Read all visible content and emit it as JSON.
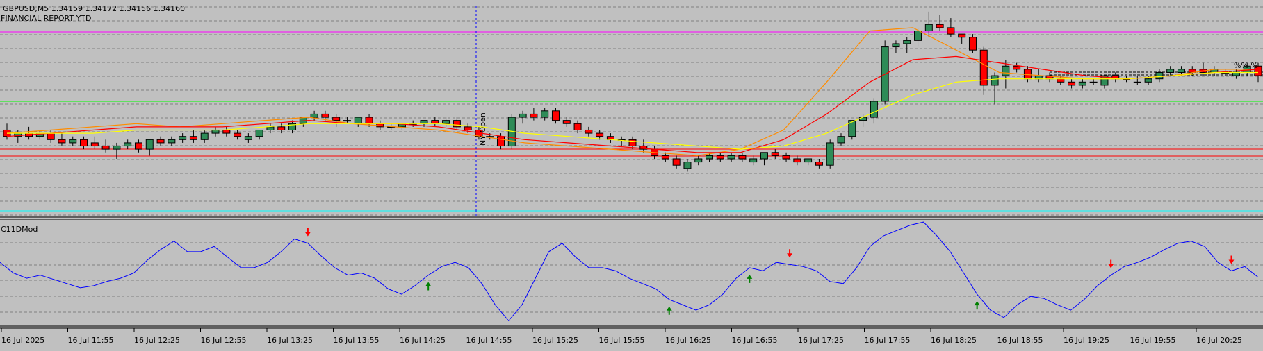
{
  "header": {
    "symbol_line": "GBPUSD,M5  1.34159 1.34172 1.34156 1.34160",
    "report_label": "FINANCIAL REPORT YTD",
    "session_label": "NY Open",
    "indicator_name": "C11DMod",
    "percent_marker": "%% %"
  },
  "colors": {
    "background": "#c0c0c0",
    "bull_candle": "#2e8b57",
    "bear_candle": "#ff0000",
    "ma_fast": "#ff8c00",
    "ma_mid": "#ff0000",
    "ma_slow": "#ffff00",
    "ma_blue": "#4169e1",
    "oscillator": "#0000ff",
    "magenta_line": "#ff00ff",
    "green_line": "#00ff00",
    "red_line": "#ff0000",
    "cyan_line": "#00ffff",
    "session_line": "#0000ff"
  },
  "chart_data": [
    {
      "type": "candlestick",
      "symbol": "GBPUSD",
      "timeframe": "M5",
      "last_bar": {
        "open": 1.34159,
        "high": 1.34172,
        "low": 1.34156,
        "close": 1.3416
      },
      "x_tick_labels": [
        "16 Jul 2025",
        "16 Jul 11:55",
        "16 Jul 12:25",
        "16 Jul 12:55",
        "16 Jul 13:25",
        "16 Jul 13:55",
        "16 Jul 14:25",
        "16 Jul 14:55",
        "16 Jul 15:25",
        "16 Jul 15:55",
        "16 Jul 16:25",
        "16 Jul 16:55",
        "16 Jul 17:25",
        "16 Jul 17:55",
        "16 Jul 18:25",
        "16 Jul 18:55",
        "16 Jul 19:25",
        "16 Jul 19:55",
        "16 Jul 20:25"
      ],
      "ylim": [
        1.3378,
        1.3445
      ],
      "candles": [
        [
          1.3405,
          1.3407,
          1.3402,
          1.3403
        ],
        [
          1.3403,
          1.3405,
          1.3401,
          1.3404
        ],
        [
          1.3404,
          1.3406,
          1.3402,
          1.3403
        ],
        [
          1.3403,
          1.3405,
          1.3402,
          1.3404
        ],
        [
          1.3404,
          1.3405,
          1.3401,
          1.3402
        ],
        [
          1.3402,
          1.3404,
          1.34,
          1.3401
        ],
        [
          1.3401,
          1.3403,
          1.34,
          1.3402
        ],
        [
          1.3402,
          1.3403,
          1.3399,
          1.34
        ],
        [
          1.3401,
          1.3403,
          1.3399,
          1.34
        ],
        [
          1.34,
          1.3402,
          1.3398,
          1.3399
        ],
        [
          1.3399,
          1.3401,
          1.3396,
          1.34
        ],
        [
          1.34,
          1.3402,
          1.3399,
          1.3401
        ],
        [
          1.3401,
          1.3402,
          1.3398,
          1.3399
        ],
        [
          1.3399,
          1.3402,
          1.3397,
          1.3402
        ],
        [
          1.3402,
          1.3403,
          1.34,
          1.3401
        ],
        [
          1.3401,
          1.3403,
          1.34,
          1.3402
        ],
        [
          1.3402,
          1.3404,
          1.3401,
          1.3403
        ],
        [
          1.3403,
          1.3405,
          1.3401,
          1.3402
        ],
        [
          1.3402,
          1.3405,
          1.3401,
          1.3404
        ],
        [
          1.3404,
          1.3406,
          1.3403,
          1.3405
        ],
        [
          1.3405,
          1.3406,
          1.3403,
          1.3404
        ],
        [
          1.3404,
          1.3405,
          1.3402,
          1.3403
        ],
        [
          1.3402,
          1.3404,
          1.3401,
          1.3403
        ],
        [
          1.3403,
          1.3405,
          1.3402,
          1.3405
        ],
        [
          1.3405,
          1.3407,
          1.3404,
          1.3406
        ],
        [
          1.3406,
          1.3407,
          1.3404,
          1.3405
        ],
        [
          1.3405,
          1.3408,
          1.3404,
          1.3407
        ],
        [
          1.3407,
          1.3409,
          1.3406,
          1.3409
        ],
        [
          1.3409,
          1.3411,
          1.3408,
          1.341
        ],
        [
          1.341,
          1.3411,
          1.3408,
          1.3409
        ],
        [
          1.3409,
          1.341,
          1.3406,
          1.3408
        ],
        [
          1.3408,
          1.3409,
          1.3407,
          1.3408
        ],
        [
          1.3407,
          1.3409,
          1.3406,
          1.3409
        ],
        [
          1.3409,
          1.341,
          1.3406,
          1.3407
        ],
        [
          1.3407,
          1.3408,
          1.3405,
          1.3406
        ],
        [
          1.3406,
          1.3407,
          1.3405,
          1.3406
        ],
        [
          1.3406,
          1.3407,
          1.3405,
          1.3407
        ],
        [
          1.3407,
          1.3408,
          1.3406,
          1.3407
        ],
        [
          1.3407,
          1.3408,
          1.3406,
          1.3408
        ],
        [
          1.3408,
          1.3409,
          1.3406,
          1.3407
        ],
        [
          1.3407,
          1.3409,
          1.3406,
          1.3408
        ],
        [
          1.3408,
          1.3409,
          1.3405,
          1.3406
        ],
        [
          1.3406,
          1.3407,
          1.3404,
          1.3405
        ],
        [
          1.3405,
          1.3406,
          1.3402,
          1.3403
        ],
        [
          1.3403,
          1.3404,
          1.3402,
          1.3403
        ],
        [
          1.3403,
          1.3404,
          1.3399,
          1.34
        ],
        [
          1.34,
          1.341,
          1.3399,
          1.3409
        ],
        [
          1.3409,
          1.3411,
          1.3407,
          1.341
        ],
        [
          1.341,
          1.3412,
          1.3408,
          1.3409
        ],
        [
          1.3409,
          1.3412,
          1.3408,
          1.3411
        ],
        [
          1.3411,
          1.3412,
          1.3407,
          1.3408
        ],
        [
          1.3408,
          1.3409,
          1.3406,
          1.3407
        ],
        [
          1.3407,
          1.3408,
          1.3404,
          1.3405
        ],
        [
          1.3405,
          1.3406,
          1.3403,
          1.3404
        ],
        [
          1.3404,
          1.3405,
          1.3402,
          1.3403
        ],
        [
          1.3403,
          1.3404,
          1.3401,
          1.3402
        ],
        [
          1.3402,
          1.3403,
          1.34,
          1.3402
        ],
        [
          1.3402,
          1.3403,
          1.3399,
          1.34
        ],
        [
          1.34,
          1.3402,
          1.3398,
          1.3399
        ],
        [
          1.3399,
          1.34,
          1.3396,
          1.3397
        ],
        [
          1.3397,
          1.3398,
          1.3395,
          1.3396
        ],
        [
          1.3396,
          1.3397,
          1.3393,
          1.3394
        ],
        [
          1.3393,
          1.3396,
          1.3392,
          1.3395
        ],
        [
          1.3395,
          1.3397,
          1.3394,
          1.3396
        ],
        [
          1.3396,
          1.3398,
          1.3395,
          1.3397
        ],
        [
          1.3397,
          1.3398,
          1.3395,
          1.3396
        ],
        [
          1.3396,
          1.3398,
          1.3395,
          1.3397
        ],
        [
          1.3397,
          1.3398,
          1.3395,
          1.3396
        ],
        [
          1.3395,
          1.3397,
          1.3394,
          1.3396
        ],
        [
          1.3396,
          1.3398,
          1.3394,
          1.3398
        ],
        [
          1.3398,
          1.3399,
          1.3396,
          1.3397
        ],
        [
          1.3397,
          1.3398,
          1.3395,
          1.3396
        ],
        [
          1.3396,
          1.3397,
          1.3394,
          1.3395
        ],
        [
          1.3395,
          1.3396,
          1.3394,
          1.3396
        ],
        [
          1.3395,
          1.3396,
          1.3393,
          1.3394
        ],
        [
          1.3394,
          1.3402,
          1.3393,
          1.3401
        ],
        [
          1.3401,
          1.3404,
          1.34,
          1.3403
        ],
        [
          1.3403,
          1.3408,
          1.3402,
          1.3408
        ],
        [
          1.3408,
          1.341,
          1.3406,
          1.3409
        ],
        [
          1.3409,
          1.3415,
          1.3407,
          1.3414
        ],
        [
          1.3414,
          1.3433,
          1.3413,
          1.3431
        ],
        [
          1.3431,
          1.3433,
          1.3429,
          1.3432
        ],
        [
          1.3432,
          1.3434,
          1.3429,
          1.3433
        ],
        [
          1.3433,
          1.3437,
          1.3431,
          1.3436
        ],
        [
          1.3436,
          1.3442,
          1.3434,
          1.3438
        ],
        [
          1.3438,
          1.3441,
          1.3436,
          1.3437
        ],
        [
          1.3437,
          1.344,
          1.3434,
          1.3435
        ],
        [
          1.3435,
          1.3435,
          1.3432,
          1.3434
        ],
        [
          1.3434,
          1.3435,
          1.3429,
          1.343
        ],
        [
          1.343,
          1.3431,
          1.3416,
          1.3419
        ],
        [
          1.3419,
          1.3423,
          1.3413,
          1.3422
        ],
        [
          1.3422,
          1.3427,
          1.3418,
          1.3425
        ],
        [
          1.3425,
          1.3426,
          1.3423,
          1.3424
        ],
        [
          1.3424,
          1.3425,
          1.342,
          1.3421
        ],
        [
          1.3421,
          1.3424,
          1.342,
          1.3422
        ],
        [
          1.3422,
          1.3423,
          1.342,
          1.3421
        ],
        [
          1.3421,
          1.3422,
          1.3419,
          1.342
        ],
        [
          1.342,
          1.3421,
          1.3418,
          1.3419
        ],
        [
          1.3419,
          1.3421,
          1.3418,
          1.342
        ],
        [
          1.342,
          1.3421,
          1.3419,
          1.342
        ],
        [
          1.3419,
          1.3422,
          1.3418,
          1.3422
        ],
        [
          1.3422,
          1.3423,
          1.342,
          1.3421
        ],
        [
          1.3421,
          1.3422,
          1.342,
          1.3421
        ],
        [
          1.342,
          1.3422,
          1.3419,
          1.342
        ],
        [
          1.342,
          1.3422,
          1.3419,
          1.3421
        ],
        [
          1.3421,
          1.3424,
          1.342,
          1.3423
        ],
        [
          1.3423,
          1.3425,
          1.3422,
          1.3424
        ],
        [
          1.3423,
          1.3425,
          1.3422,
          1.3424
        ],
        [
          1.3424,
          1.3425,
          1.3422,
          1.3423
        ],
        [
          1.3424,
          1.3426,
          1.3422,
          1.3423
        ],
        [
          1.3423,
          1.3425,
          1.3422,
          1.3424
        ],
        [
          1.3423,
          1.3424,
          1.3422,
          1.3423
        ],
        [
          1.3422,
          1.3424,
          1.3421,
          1.3423
        ],
        [
          1.3423,
          1.3426,
          1.3422,
          1.3425
        ],
        [
          1.3425,
          1.3426,
          1.342,
          1.3422
        ]
      ],
      "moving_averages": [
        {
          "name": "fast",
          "color": "#ff8c00",
          "values": [
            1.3404,
            1.3405,
            1.3406,
            1.3407,
            1.3406,
            1.3407,
            1.3408,
            1.3409,
            1.3407,
            1.3406,
            1.3405,
            1.3403,
            1.3401,
            1.34,
            1.3399,
            1.3398,
            1.3397,
            1.3399,
            1.3405,
            1.342,
            1.3436,
            1.3437,
            1.343,
            1.3423,
            1.3422,
            1.3421,
            1.3421,
            1.3422,
            1.3424,
            1.3424
          ]
        },
        {
          "name": "mid",
          "color": "#ff0000",
          "values": [
            1.3403,
            1.3404,
            1.3405,
            1.3406,
            1.3406,
            1.3406,
            1.3407,
            1.3408,
            1.3407,
            1.3407,
            1.3406,
            1.3404,
            1.3402,
            1.3401,
            1.34,
            1.3399,
            1.3398,
            1.3398,
            1.3402,
            1.341,
            1.342,
            1.3427,
            1.3428,
            1.3426,
            1.3424,
            1.3422,
            1.3421,
            1.3422,
            1.3423,
            1.3424
          ]
        },
        {
          "name": "slow",
          "color": "#ffff00",
          "values": [
            1.3404,
            1.3404,
            1.3404,
            1.3405,
            1.3405,
            1.3405,
            1.3406,
            1.3407,
            1.3407,
            1.3407,
            1.3407,
            1.3406,
            1.3404,
            1.3403,
            1.3402,
            1.3401,
            1.34,
            1.3399,
            1.34,
            1.3404,
            1.341,
            1.3416,
            1.342,
            1.3421,
            1.3421,
            1.3421,
            1.3421,
            1.3422,
            1.3423,
            1.3423
          ]
        }
      ]
    },
    {
      "type": "line",
      "name": "C11DMod",
      "ylim": [
        0,
        100
      ],
      "series": [
        {
          "values": [
            60,
            50,
            45,
            48,
            44,
            40,
            36,
            38,
            42,
            45,
            50,
            62,
            72,
            80,
            70,
            70,
            75,
            65,
            55,
            55,
            60,
            70,
            82,
            78,
            66,
            55,
            48,
            50,
            45,
            35,
            30,
            38,
            48,
            56,
            60,
            55,
            40,
            20,
            5,
            20,
            45,
            70,
            78,
            65,
            55,
            55,
            52,
            45,
            40,
            35,
            25,
            20,
            15,
            20,
            30,
            45,
            55,
            52,
            60,
            58,
            56,
            52,
            42,
            40,
            55,
            75,
            85,
            90,
            95,
            98,
            85,
            70,
            50,
            30,
            15,
            8,
            20,
            28,
            26,
            20,
            15,
            25,
            38,
            48,
            56,
            60,
            65,
            72,
            78,
            80,
            75,
            60,
            52,
            56,
            46
          ]
        }
      ],
      "divergence_arrows_up": [
        {
          "index": 32
        },
        {
          "index": 50
        },
        {
          "index": 56
        },
        {
          "index": 73
        }
      ],
      "divergence_arrows_down": [
        {
          "index": 23
        },
        {
          "index": 59
        },
        {
          "index": 83
        },
        {
          "index": 92
        }
      ]
    }
  ]
}
